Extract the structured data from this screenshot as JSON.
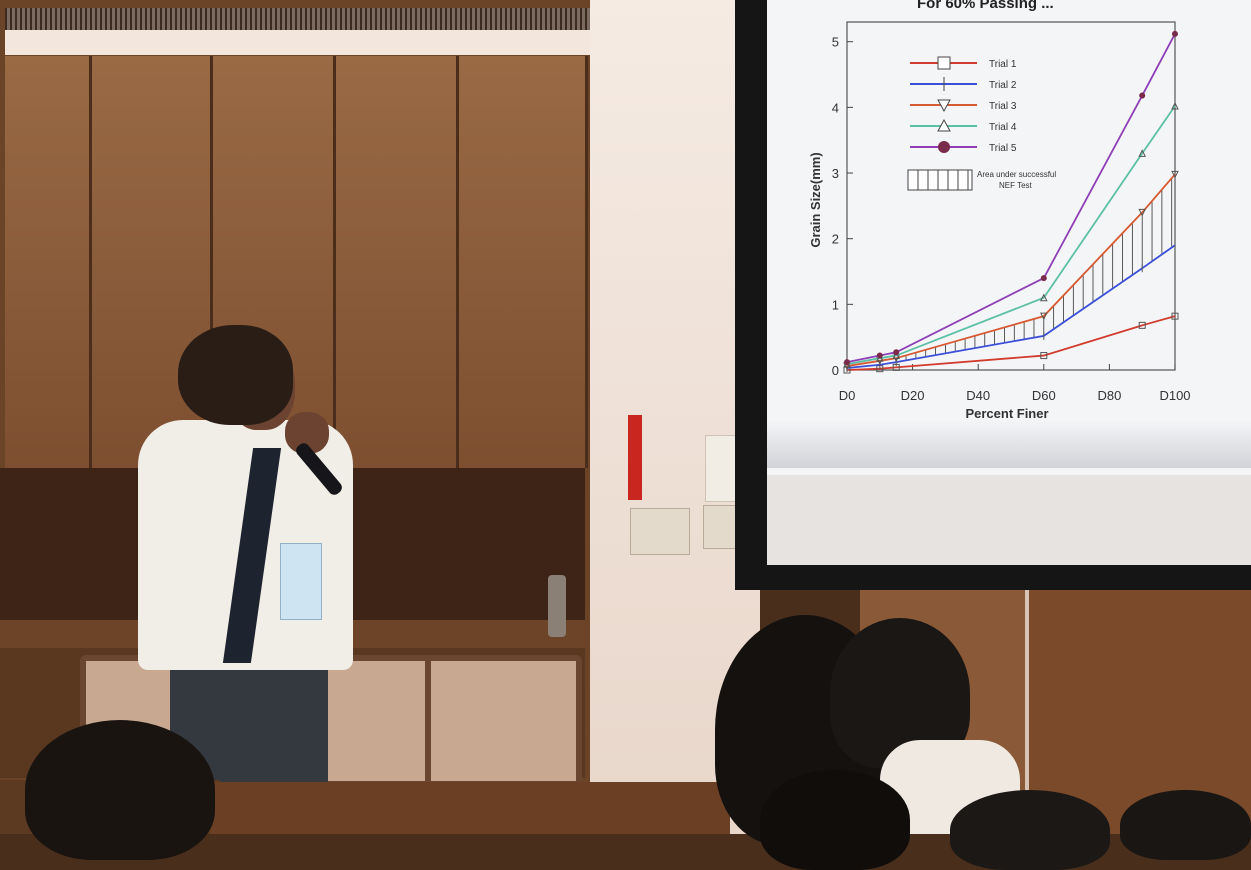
{
  "slide": {
    "title_fragment": "For 60% Passing ...",
    "chart_data": {
      "type": "line",
      "title": "",
      "xlabel": "Percent Finer",
      "ylabel": "Grain Size(mm)",
      "x_ticks": [
        "D0",
        "D20",
        "D40",
        "D60",
        "D80",
        "D100"
      ],
      "y_ticks": [
        "0",
        "1",
        "2",
        "3",
        "4",
        "5"
      ],
      "xlim": [
        0,
        100
      ],
      "ylim": [
        0,
        5.3
      ],
      "series": [
        {
          "name": "Trial 1",
          "color": "#d23c2e",
          "marker": "square",
          "x": [
            0,
            10,
            15,
            60,
            90,
            100
          ],
          "y": [
            0.0,
            0.02,
            0.04,
            0.22,
            0.68,
            0.82
          ]
        },
        {
          "name": "Trial 2",
          "color": "#3c4fd8",
          "marker": "vline",
          "x": [
            0,
            10,
            15,
            60,
            90,
            100
          ],
          "y": [
            0.03,
            0.08,
            0.12,
            0.52,
            1.55,
            1.9
          ]
        },
        {
          "name": "Trial 3",
          "color": "#d65a32",
          "marker": "triangle-down",
          "x": [
            0,
            10,
            15,
            60,
            90,
            100
          ],
          "y": [
            0.06,
            0.14,
            0.18,
            0.82,
            2.4,
            2.98
          ]
        },
        {
          "name": "Trial 4",
          "color": "#5cc0a5",
          "marker": "triangle-up",
          "x": [
            0,
            10,
            15,
            60,
            90,
            100
          ],
          "y": [
            0.09,
            0.18,
            0.22,
            1.1,
            3.3,
            4.02
          ]
        },
        {
          "name": "Trial 5",
          "color": "#8e3fb6",
          "marker": "circle",
          "x": [
            0,
            10,
            15,
            60,
            90,
            100
          ],
          "y": [
            0.12,
            0.22,
            0.27,
            1.4,
            4.18,
            5.12
          ]
        }
      ],
      "shaded_area": {
        "label": "Area under successful NEF Test",
        "between": [
          "Trial 2",
          "Trial 3"
        ]
      },
      "legend_position": "top-left"
    }
  }
}
